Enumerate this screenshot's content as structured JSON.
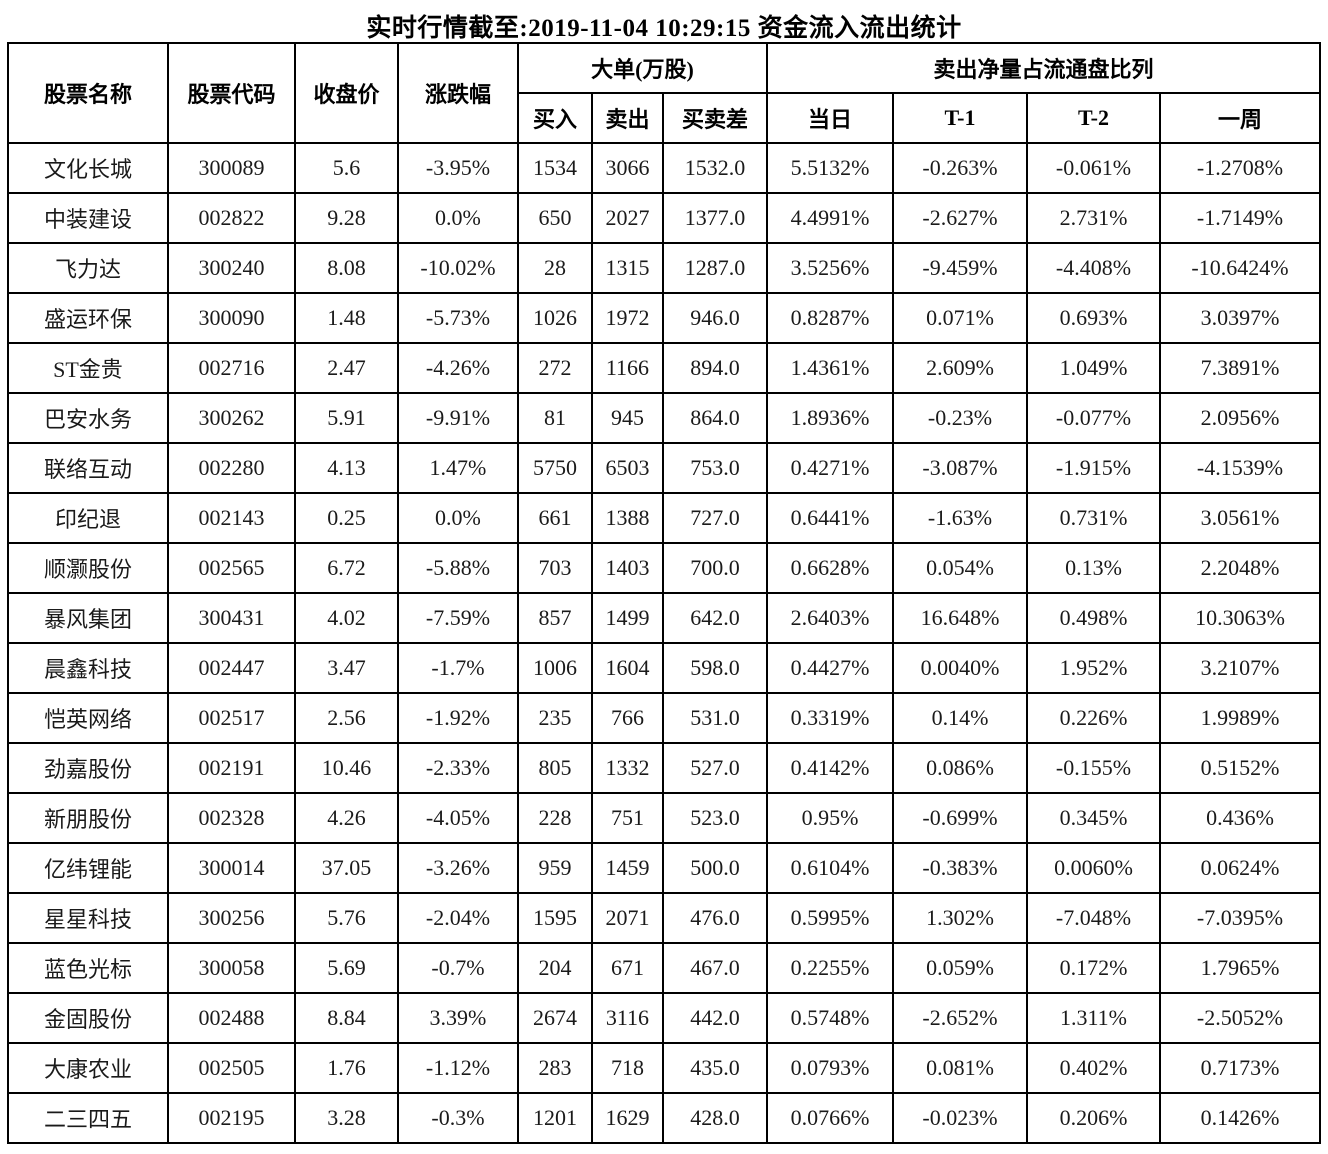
{
  "title": "实时行情截至:2019-11-04 10:29:15 资金流入流出统计",
  "colors": {
    "stock_name": "#1F4E79",
    "stock_code": "#2F5C9E",
    "text": "#000000",
    "border": "#000000",
    "background": "#FFFFFF"
  },
  "table": {
    "headers": {
      "name": "股票名称",
      "code": "股票代码",
      "close": "收盘价",
      "change": "涨跌幅",
      "group_big_order": "大单(万股)",
      "buy": "买入",
      "sell": "卖出",
      "diff": "买卖差",
      "group_net_sell": "卖出净量占流通盘比列",
      "day": "当日",
      "t1": "T-1",
      "t2": "T-2",
      "week": "一周"
    },
    "rows": [
      [
        "文化长城",
        "300089",
        "5.6",
        "-3.95%",
        "1534",
        "3066",
        "1532.0",
        "5.5132%",
        "-0.263%",
        "-0.061%",
        "-1.2708%"
      ],
      [
        "中装建设",
        "002822",
        "9.28",
        "0.0%",
        "650",
        "2027",
        "1377.0",
        "4.4991%",
        "-2.627%",
        "2.731%",
        "-1.7149%"
      ],
      [
        "飞力达",
        "300240",
        "8.08",
        "-10.02%",
        "28",
        "1315",
        "1287.0",
        "3.5256%",
        "-9.459%",
        "-4.408%",
        "-10.6424%"
      ],
      [
        "盛运环保",
        "300090",
        "1.48",
        "-5.73%",
        "1026",
        "1972",
        "946.0",
        "0.8287%",
        "0.071%",
        "0.693%",
        "3.0397%"
      ],
      [
        "ST金贵",
        "002716",
        "2.47",
        "-4.26%",
        "272",
        "1166",
        "894.0",
        "1.4361%",
        "2.609%",
        "1.049%",
        "7.3891%"
      ],
      [
        "巴安水务",
        "300262",
        "5.91",
        "-9.91%",
        "81",
        "945",
        "864.0",
        "1.8936%",
        "-0.23%",
        "-0.077%",
        "2.0956%"
      ],
      [
        "联络互动",
        "002280",
        "4.13",
        "1.47%",
        "5750",
        "6503",
        "753.0",
        "0.4271%",
        "-3.087%",
        "-1.915%",
        "-4.1539%"
      ],
      [
        "印纪退",
        "002143",
        "0.25",
        "0.0%",
        "661",
        "1388",
        "727.0",
        "0.6441%",
        "-1.63%",
        "0.731%",
        "3.0561%"
      ],
      [
        "顺灏股份",
        "002565",
        "6.72",
        "-5.88%",
        "703",
        "1403",
        "700.0",
        "0.6628%",
        "0.054%",
        "0.13%",
        "2.2048%"
      ],
      [
        "暴风集团",
        "300431",
        "4.02",
        "-7.59%",
        "857",
        "1499",
        "642.0",
        "2.6403%",
        "16.648%",
        "0.498%",
        "10.3063%"
      ],
      [
        "晨鑫科技",
        "002447",
        "3.47",
        "-1.7%",
        "1006",
        "1604",
        "598.0",
        "0.4427%",
        "0.0040%",
        "1.952%",
        "3.2107%"
      ],
      [
        "恺英网络",
        "002517",
        "2.56",
        "-1.92%",
        "235",
        "766",
        "531.0",
        "0.3319%",
        "0.14%",
        "0.226%",
        "1.9989%"
      ],
      [
        "劲嘉股份",
        "002191",
        "10.46",
        "-2.33%",
        "805",
        "1332",
        "527.0",
        "0.4142%",
        "0.086%",
        "-0.155%",
        "0.5152%"
      ],
      [
        "新朋股份",
        "002328",
        "4.26",
        "-4.05%",
        "228",
        "751",
        "523.0",
        "0.95%",
        "-0.699%",
        "0.345%",
        "0.436%"
      ],
      [
        "亿纬锂能",
        "300014",
        "37.05",
        "-3.26%",
        "959",
        "1459",
        "500.0",
        "0.6104%",
        "-0.383%",
        "0.0060%",
        "0.0624%"
      ],
      [
        "星星科技",
        "300256",
        "5.76",
        "-2.04%",
        "1595",
        "2071",
        "476.0",
        "0.5995%",
        "1.302%",
        "-7.048%",
        "-7.0395%"
      ],
      [
        "蓝色光标",
        "300058",
        "5.69",
        "-0.7%",
        "204",
        "671",
        "467.0",
        "0.2255%",
        "0.059%",
        "0.172%",
        "1.7965%"
      ],
      [
        "金固股份",
        "002488",
        "8.84",
        "3.39%",
        "2674",
        "3116",
        "442.0",
        "0.5748%",
        "-2.652%",
        "1.311%",
        "-2.5052%"
      ],
      [
        "大康农业",
        "002505",
        "1.76",
        "-1.12%",
        "283",
        "718",
        "435.0",
        "0.0793%",
        "0.081%",
        "0.402%",
        "0.7173%"
      ],
      [
        "二三四五",
        "002195",
        "3.28",
        "-0.3%",
        "1201",
        "1629",
        "428.0",
        "0.0766%",
        "-0.023%",
        "0.206%",
        "0.1426%"
      ]
    ]
  }
}
